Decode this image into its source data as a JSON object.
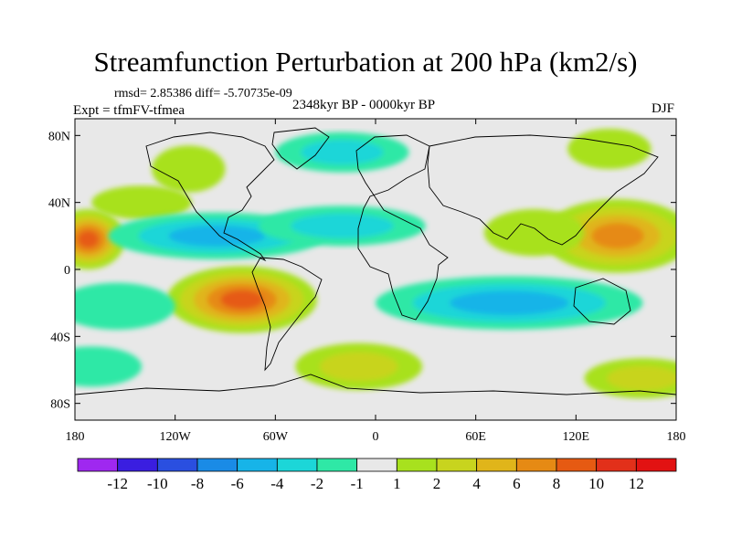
{
  "chart_data": {
    "type": "heatmap",
    "title": "Streamfunction Perturbation at 200 hPa (km2/s)",
    "stats_line": "rmsd= 2.85386 diff= -5.70735e-09",
    "experiment": "Expt = tfmFV-tfmea",
    "period": "2348kyr BP - 0000kyr BP",
    "season": "DJF",
    "map": "global lon-lat map with coastlines",
    "xlim": [
      -180,
      180
    ],
    "ylim": [
      -90,
      90
    ],
    "x_ticks": [
      {
        "v": -180,
        "label": "180"
      },
      {
        "v": -120,
        "label": "120W"
      },
      {
        "v": -60,
        "label": "60W"
      },
      {
        "v": 0,
        "label": "0"
      },
      {
        "v": 60,
        "label": "60E"
      },
      {
        "v": 120,
        "label": "120E"
      },
      {
        "v": 180,
        "label": "180"
      }
    ],
    "y_ticks": [
      {
        "v": 80,
        "label": "80N"
      },
      {
        "v": 40,
        "label": "40N"
      },
      {
        "v": 0,
        "label": "0"
      },
      {
        "v": -40,
        "label": "40S"
      },
      {
        "v": -80,
        "label": "80S"
      }
    ],
    "colorbar": {
      "labels": [
        "-12",
        "-10",
        "-8",
        "-6",
        "-4",
        "-2",
        "-1",
        "1",
        "2",
        "4",
        "6",
        "8",
        "10",
        "12"
      ],
      "colors": [
        "#9f28f0",
        "#3a1ee0",
        "#2a4fe0",
        "#1a8be6",
        "#17b4e8",
        "#1cd6d8",
        "#2fe8a6",
        "#e8e8e8",
        "#a8e11e",
        "#c8d41e",
        "#e0b51a",
        "#e68a14",
        "#e65a12",
        "#e2301a",
        "#e21212"
      ]
    },
    "anomaly_regions": [
      {
        "lon": -172,
        "lat": 18,
        "rlon": 22,
        "rlat": 18,
        "value": 10
      },
      {
        "lon": -140,
        "lat": 40,
        "rlon": 30,
        "rlat": 10,
        "value": 2
      },
      {
        "lon": -112,
        "lat": 60,
        "rlon": 22,
        "rlat": 14,
        "value": 2
      },
      {
        "lon": -95,
        "lat": 20,
        "rlon": 65,
        "rlat": 14,
        "value": -6
      },
      {
        "lon": -20,
        "lat": 26,
        "rlon": 50,
        "rlat": 12,
        "value": -3
      },
      {
        "lon": -20,
        "lat": 70,
        "rlon": 40,
        "rlat": 12,
        "value": -3
      },
      {
        "lon": 140,
        "lat": 72,
        "rlon": 25,
        "rlat": 12,
        "value": 2
      },
      {
        "lon": 145,
        "lat": 20,
        "rlon": 45,
        "rlat": 22,
        "value": 8
      },
      {
        "lon": 95,
        "lat": 22,
        "rlon": 30,
        "rlat": 14,
        "value": 2
      },
      {
        "lon": -80,
        "lat": -18,
        "rlon": 45,
        "rlat": 20,
        "value": 9
      },
      {
        "lon": -155,
        "lat": -22,
        "rlon": 35,
        "rlat": 14,
        "value": -2
      },
      {
        "lon": 80,
        "lat": -20,
        "rlon": 80,
        "rlat": 16,
        "value": -5
      },
      {
        "lon": -10,
        "lat": -58,
        "rlon": 38,
        "rlat": 14,
        "value": 3
      },
      {
        "lon": -170,
        "lat": -58,
        "rlon": 30,
        "rlat": 12,
        "value": -2
      },
      {
        "lon": 160,
        "lat": -65,
        "rlon": 35,
        "rlat": 12,
        "value": 3
      }
    ]
  }
}
